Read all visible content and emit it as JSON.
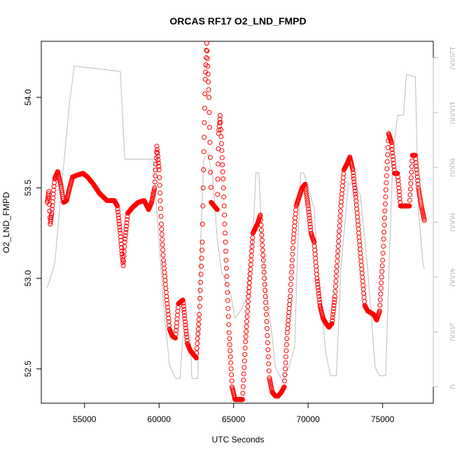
{
  "chart_data": {
    "type": "scatter",
    "title": "ORCAS RF17 O2_LND_FMPD",
    "xlabel": "UTC Seconds",
    "ylabel": "O2_LND_FMPD",
    "xlim": [
      52100,
      78400
    ],
    "ylim": [
      52.31,
      54.31
    ],
    "y2lim": [
      -600,
      12600
    ],
    "x_ticks": [
      55000,
      60000,
      65000,
      70000,
      75000
    ],
    "x_tick_labels": [
      "55000",
      "60000",
      "65000",
      "70000",
      "75000"
    ],
    "y_ticks": [
      52.5,
      53.0,
      53.5,
      54.0
    ],
    "y_tick_labels": [
      "52.5",
      "53.0",
      "53.5",
      "54.0"
    ],
    "y2_ticks": [
      0,
      2000,
      4000,
      6000,
      8000,
      10000,
      12000
    ],
    "y2_tick_labels": [
      "0",
      "2000",
      "4000",
      "6000",
      "8000",
      "10000",
      "12000"
    ],
    "colors": {
      "points": "#ff0000",
      "altitude": "#bebebe",
      "axes": "#000000"
    },
    "series": [
      {
        "axis": "left",
        "marker": "open-circle",
        "color": "#ff0000",
        "x": [
          52500,
          52600,
          52700,
          52800,
          53000,
          53200,
          53400,
          53600,
          53800,
          54000,
          54200,
          54500,
          54900,
          55200,
          55600,
          56000,
          56500,
          57000,
          57200,
          57400,
          57500,
          57600,
          57700,
          57900,
          58200,
          58600,
          59000,
          59300,
          59500,
          59700,
          59850,
          60000,
          60150,
          60300,
          60500,
          60700,
          60900,
          61100,
          61300,
          61600,
          61900,
          62100,
          62300,
          62500,
          62700,
          62900,
          63000,
          63100,
          63200,
          63350,
          63500,
          63700,
          63900,
          64000,
          64100,
          64300,
          64500,
          64700,
          64900,
          65100,
          65300,
          65600,
          65800,
          66000,
          66300,
          66600,
          66800,
          67000,
          67200,
          67400,
          67600,
          67800,
          68000,
          68200,
          68400,
          68600,
          68800,
          69000,
          69200,
          69400,
          69600,
          69800,
          70000,
          70200,
          70400,
          70600,
          70800,
          71000,
          71200,
          71400,
          71600,
          71800,
          72000,
          72200,
          72400,
          72600,
          72800,
          73000,
          73200,
          73400,
          73600,
          73800,
          74000,
          74200,
          74400,
          74600,
          74800,
          75000,
          75200,
          75400,
          75600,
          75800,
          76000,
          76200,
          76400,
          76600,
          76800,
          77000,
          77200,
          77400,
          77600,
          77800
        ],
        "y": [
          53.42,
          53.48,
          53.3,
          53.36,
          53.55,
          53.59,
          53.52,
          53.42,
          53.43,
          53.5,
          53.56,
          53.57,
          53.58,
          53.56,
          53.52,
          53.47,
          53.43,
          53.43,
          53.4,
          53.25,
          53.15,
          53.07,
          53.2,
          53.36,
          53.39,
          53.42,
          53.43,
          53.38,
          53.42,
          53.5,
          53.73,
          53.6,
          53.3,
          53.1,
          52.9,
          52.72,
          52.68,
          52.67,
          52.86,
          52.88,
          52.64,
          52.6,
          52.58,
          52.56,
          52.8,
          53.2,
          53.7,
          54.1,
          54.3,
          54.0,
          53.42,
          53.4,
          53.38,
          53.8,
          53.9,
          53.55,
          53.1,
          52.7,
          52.4,
          52.33,
          52.33,
          52.33,
          52.65,
          52.9,
          53.25,
          53.3,
          53.35,
          53.1,
          52.8,
          52.45,
          52.37,
          52.35,
          52.35,
          52.37,
          52.4,
          52.7,
          52.9,
          53.2,
          53.4,
          53.45,
          53.5,
          53.52,
          53.4,
          53.25,
          53.2,
          53.0,
          52.85,
          52.78,
          52.75,
          52.73,
          52.75,
          52.9,
          53.15,
          53.4,
          53.6,
          53.63,
          53.67,
          53.6,
          53.45,
          53.25,
          53.05,
          52.85,
          52.82,
          52.81,
          52.8,
          52.77,
          52.82,
          53.1,
          53.45,
          53.8,
          53.75,
          53.58,
          53.58,
          53.4,
          53.4,
          53.4,
          53.4,
          53.68,
          53.68,
          53.5,
          53.4,
          53.32
        ]
      },
      {
        "axis": "right",
        "marker": "line",
        "color": "#bebebe",
        "x": [
          52500,
          53000,
          53500,
          54000,
          54200,
          54300,
          57400,
          57700,
          58000,
          59500,
          59600,
          60300,
          60700,
          61100,
          61400,
          61600,
          61700,
          62100,
          62200,
          62600,
          62800,
          63000,
          63300,
          63600,
          63900,
          64200,
          64800,
          65100,
          65500,
          65900,
          66300,
          66500,
          66700,
          66900,
          67200,
          67600,
          67800,
          68300,
          68700,
          69100,
          69300,
          69500,
          69700,
          70000,
          70400,
          70800,
          71200,
          71500,
          71900,
          72200,
          72700,
          73100,
          73500,
          74000,
          74500,
          74800,
          75200,
          75500,
          75700,
          76000,
          76400,
          76600,
          77200,
          77400,
          77700,
          77800
        ],
        "y": [
          3600,
          4500,
          7500,
          10400,
          11200,
          11700,
          11500,
          8300,
          8300,
          8300,
          8300,
          3000,
          800,
          300,
          300,
          1800,
          1900,
          1900,
          300,
          300,
          5500,
          8300,
          8500,
          7600,
          5400,
          4200,
          3400,
          2500,
          2800,
          3300,
          5500,
          7800,
          7800,
          5400,
          3500,
          1800,
          700,
          200,
          700,
          1500,
          5000,
          7800,
          7800,
          7300,
          6500,
          3300,
          1200,
          400,
          400,
          4300,
          7400,
          7400,
          7000,
          4300,
          700,
          400,
          400,
          5500,
          8500,
          9900,
          9900,
          11400,
          11300,
          6500,
          4500,
          4300
        ]
      }
    ]
  }
}
